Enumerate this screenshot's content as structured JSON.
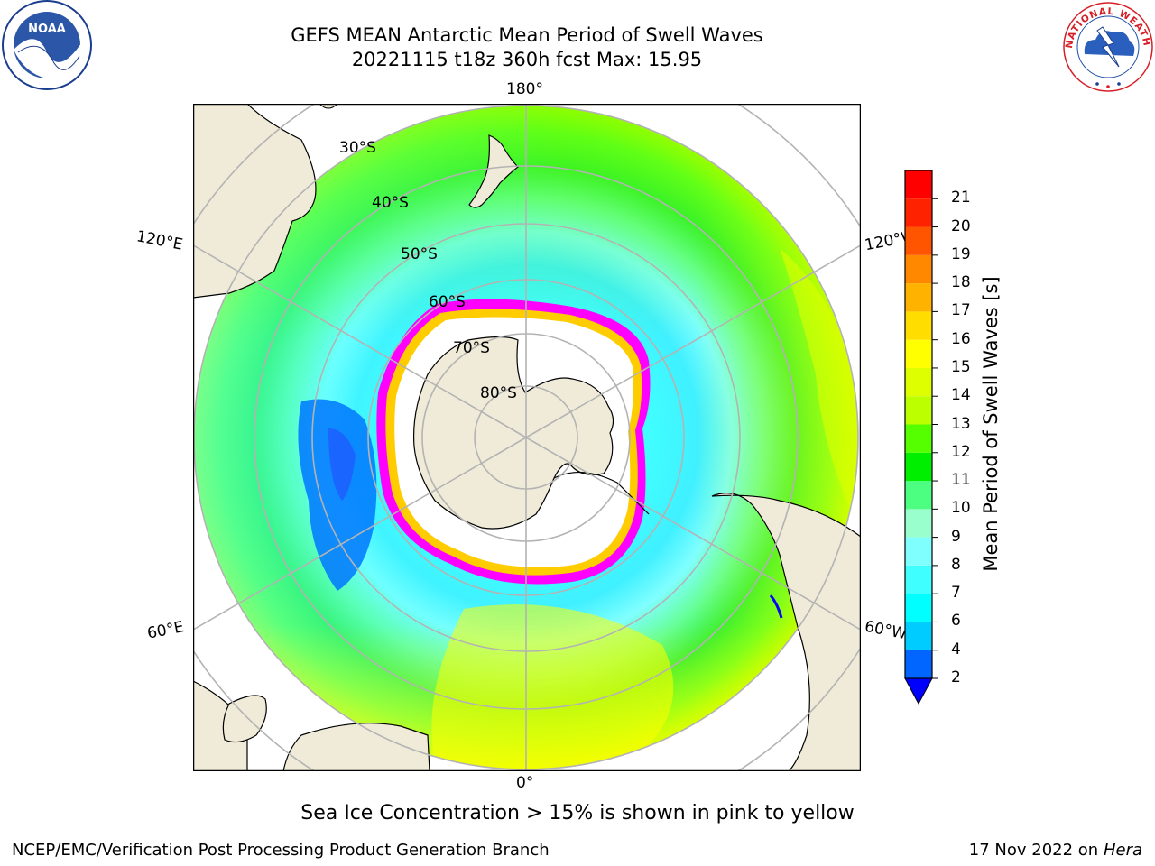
{
  "title": {
    "line1": "GEFS MEAN Antarctic Mean Period of Swell Waves",
    "line2": "20221115 t18z 360h fcst   Max: 15.95"
  },
  "caption": "Sea Ice Concentration > 15% is shown in pink to yellow",
  "footer": {
    "left": "NCEP/EMC/Verification Post Processing Product Generation Branch",
    "date": "17 Nov 2022 on",
    "machine": "Hera"
  },
  "logos": {
    "left": "NOAA",
    "right": "NATIONAL WEATHER SERVICE"
  },
  "map": {
    "longitude_labels": [
      "180°",
      "120°E",
      "120°W",
      "60°E",
      "60°W",
      "0°"
    ],
    "latitude_labels": [
      "30°S",
      "40°S",
      "50°S",
      "60°S",
      "70°S",
      "80°S"
    ]
  },
  "colorbar": {
    "label": "Mean Period of Swell Waves [s]",
    "ticks": [
      "2",
      "4",
      "6",
      "7",
      "8",
      "9",
      "10",
      "11",
      "12",
      "13",
      "14",
      "15",
      "16",
      "17",
      "18",
      "19",
      "20",
      "21"
    ],
    "colors": [
      "#0066ff",
      "#00ccff",
      "#00ffff",
      "#40ffff",
      "#80ffff",
      "#99ffcc",
      "#4cff80",
      "#00ee00",
      "#55ff00",
      "#bbff00",
      "#ddff00",
      "#ffff00",
      "#ffdd00",
      "#ffb300",
      "#ff8800",
      "#ff5500",
      "#ff2200",
      "#ff0000"
    ],
    "extend_color": "#0000ff"
  },
  "legend_colors": {
    "land": "#efebd8",
    "sea_ice_low": "#ff00ff",
    "sea_ice_high": "#ffcc00",
    "grid": "#b3b3b3"
  }
}
